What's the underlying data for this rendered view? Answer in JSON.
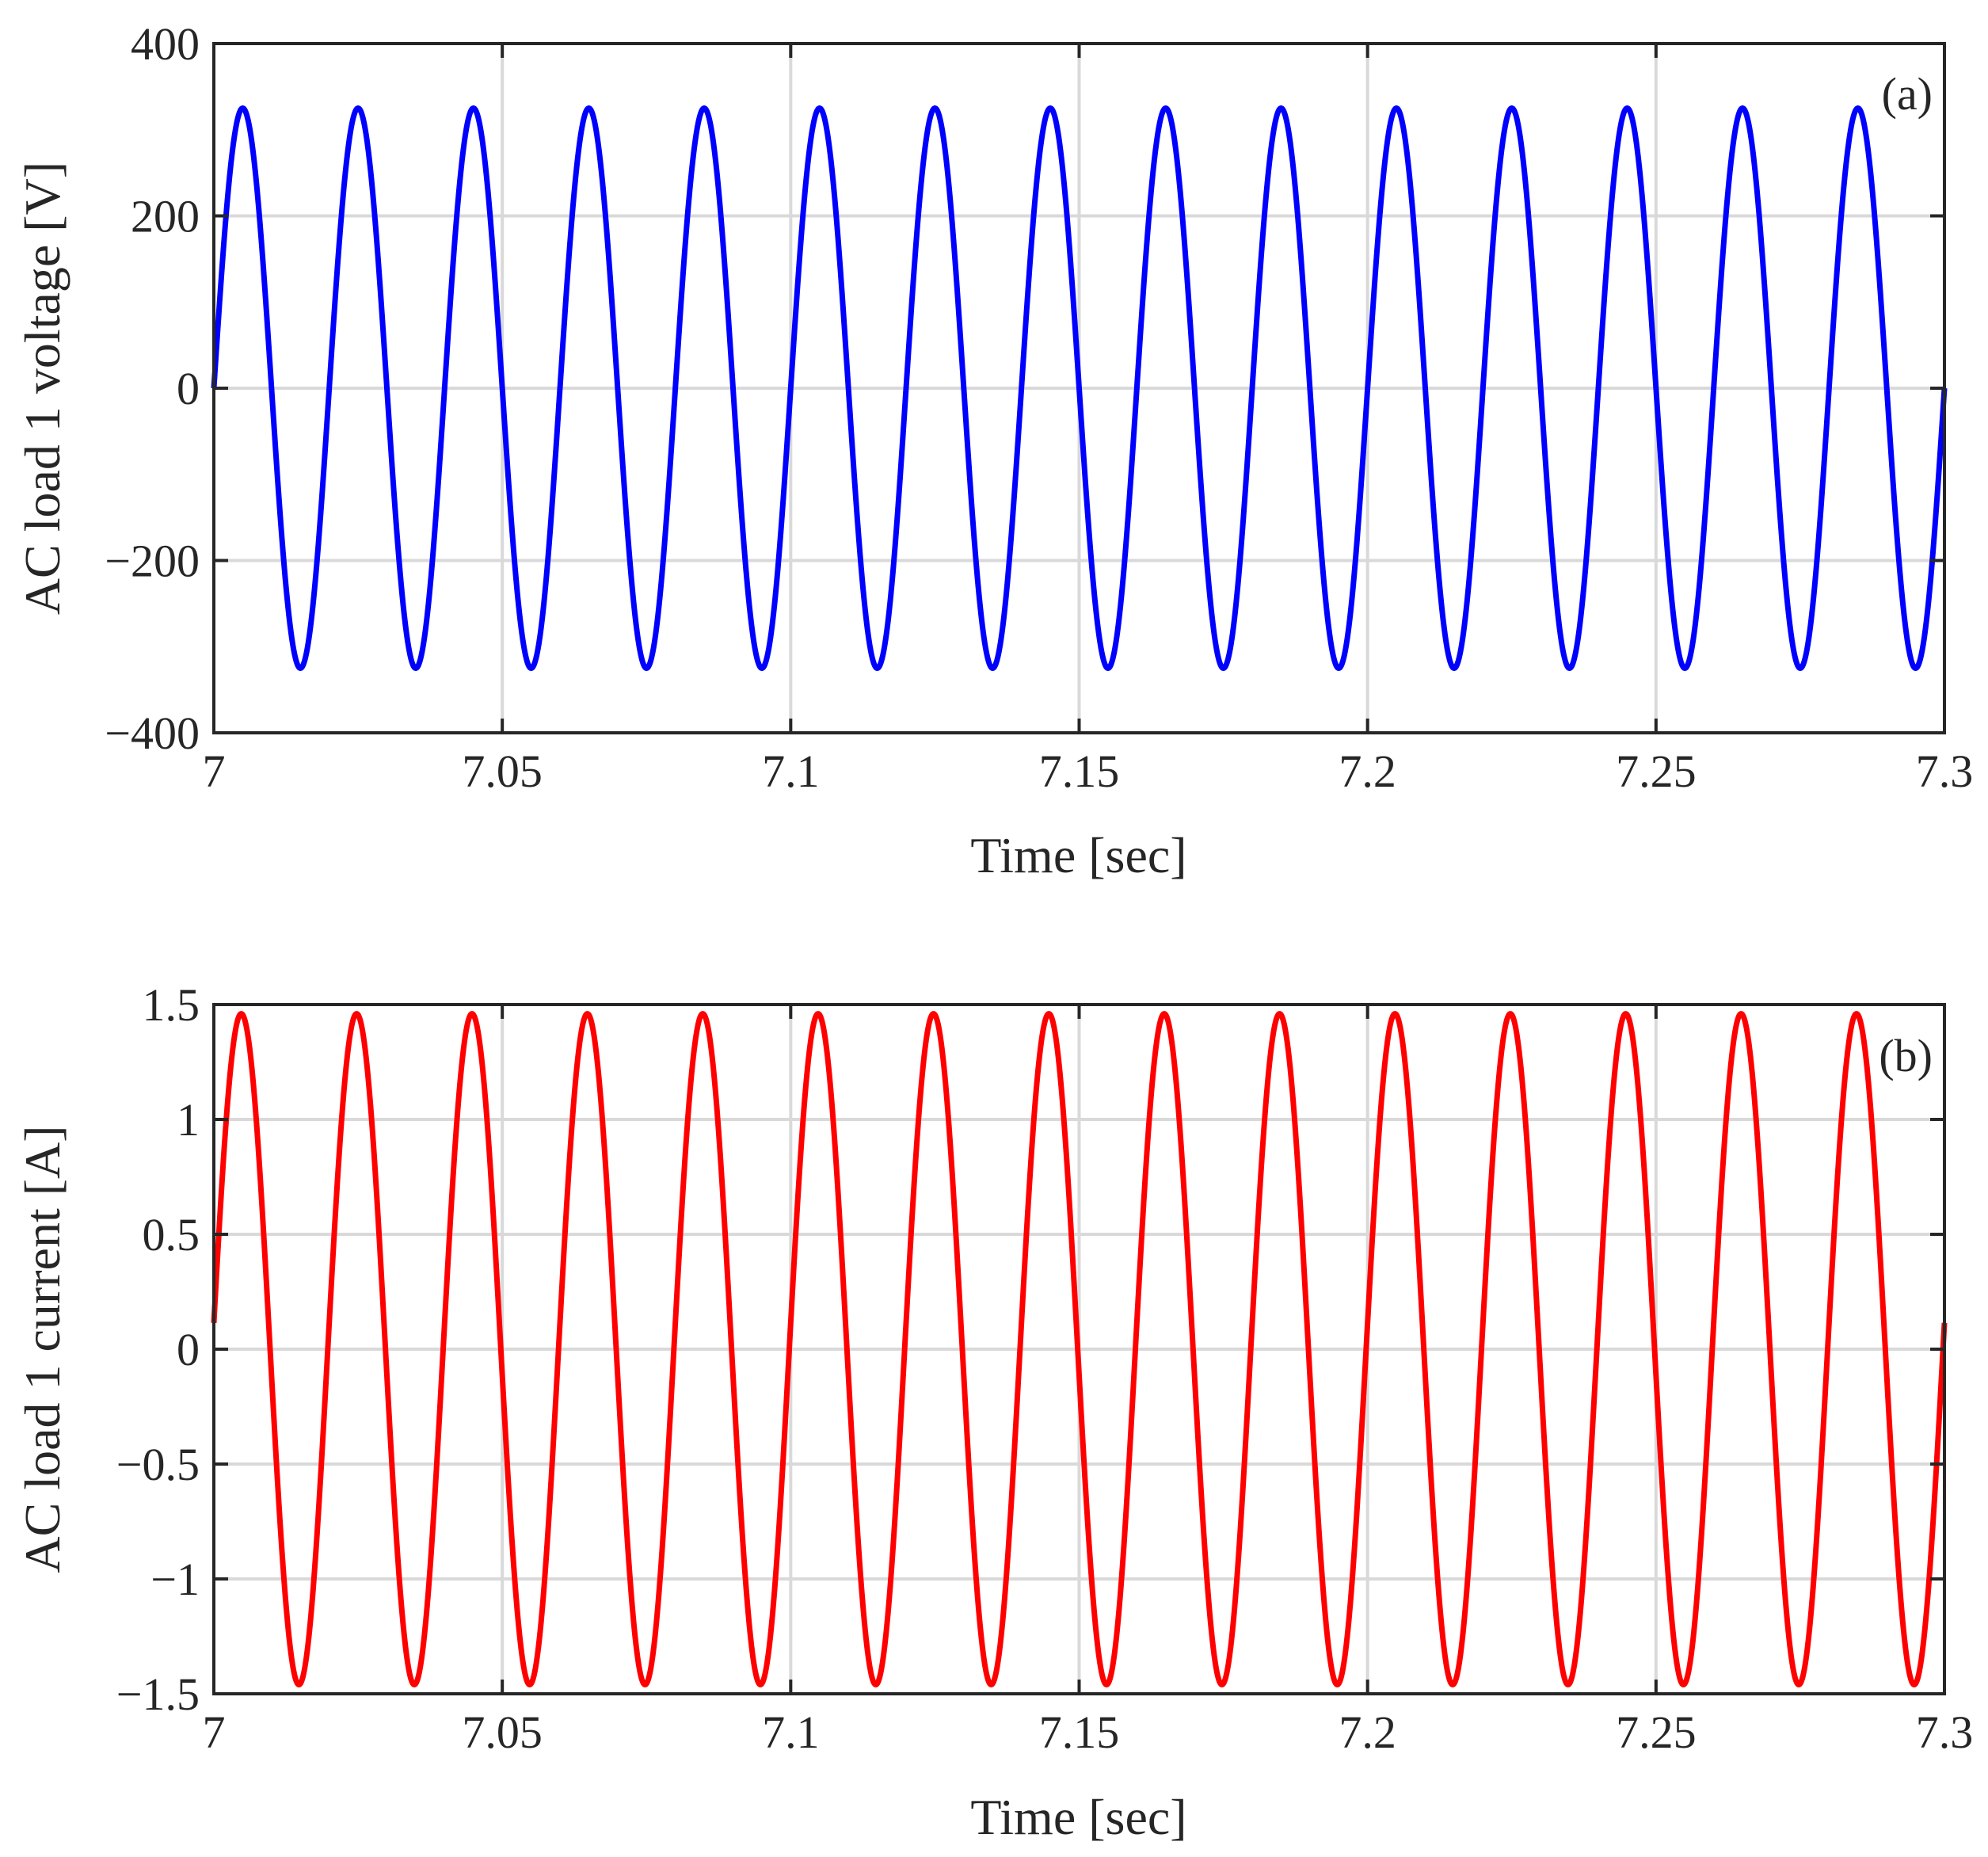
{
  "chart_data": [
    {
      "type": "line",
      "panel_tag": "(a)",
      "xlabel": "Time [sec]",
      "ylabel": "AC load 1 voltage [V]",
      "xlim": [
        7,
        7.3
      ],
      "ylim": [
        -400,
        400
      ],
      "x_ticks": [
        7,
        7.05,
        7.1,
        7.15,
        7.2,
        7.25,
        7.3
      ],
      "x_tick_labels": [
        "7",
        "7.05",
        "7.1",
        "7.15",
        "7.2",
        "7.25",
        "7.3"
      ],
      "y_ticks": [
        400,
        200,
        0,
        -200,
        -400
      ],
      "y_tick_labels": [
        "400",
        "200",
        "0",
        "−200",
        "−400"
      ],
      "grid": true,
      "series": [
        {
          "name": "AC load 1 voltage",
          "color": "#0000ff",
          "waveform": "sine",
          "amplitude": 325,
          "frequency_hz": 50,
          "offset": 0,
          "phase_deg": 0,
          "x_start": 7,
          "x_end": 7.3
        }
      ]
    },
    {
      "type": "line",
      "panel_tag": "(b)",
      "xlabel": "Time [sec]",
      "ylabel": "AC load 1 current [A]",
      "xlim": [
        7,
        7.3
      ],
      "ylim": [
        -1.5,
        1.5
      ],
      "x_ticks": [
        7,
        7.05,
        7.1,
        7.15,
        7.2,
        7.25,
        7.3
      ],
      "x_tick_labels": [
        "7",
        "7.05",
        "7.1",
        "7.15",
        "7.2",
        "7.25",
        "7.3"
      ],
      "y_ticks": [
        1.5,
        1,
        0.5,
        0,
        -0.5,
        -1,
        -1.5
      ],
      "y_tick_labels": [
        "1.5",
        "1",
        "0.5",
        "0",
        "−0.5",
        "−1",
        "−1.5"
      ],
      "grid": true,
      "series": [
        {
          "name": "AC load 1 current",
          "color": "#ff0000",
          "waveform": "sine",
          "amplitude": 1.46,
          "frequency_hz": 50,
          "offset": 0,
          "phase_deg": 4.5,
          "x_start": 7,
          "x_end": 7.3
        }
      ]
    }
  ]
}
